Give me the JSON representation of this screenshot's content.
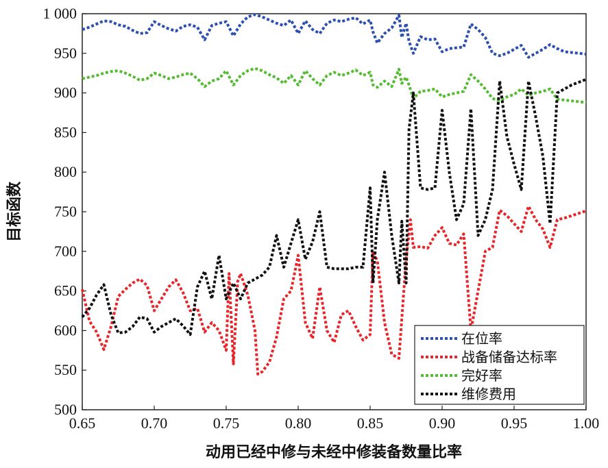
{
  "chart_data": {
    "type": "line",
    "title": "",
    "xlabel": "动用已经中修与未经中修装备数量比率",
    "ylabel": "目标函数",
    "xlim": [
      0.65,
      1.0
    ],
    "ylim": [
      500,
      1000
    ],
    "x_ticks": [
      "0.65",
      "0.70",
      "0.75",
      "0.80",
      "0.85",
      "0.90",
      "0.95",
      "1.00"
    ],
    "y_ticks": [
      "500",
      "550",
      "600",
      "650",
      "700",
      "750",
      "800",
      "850",
      "900",
      "950",
      "1 000"
    ],
    "grid": false,
    "legend_position": "bottom-right",
    "line_style": "dotted",
    "series": [
      {
        "name": "在位率",
        "color": "#2c4fb0",
        "points": [
          [
            0.65,
            980
          ],
          [
            0.655,
            983
          ],
          [
            0.66,
            987
          ],
          [
            0.665,
            991
          ],
          [
            0.67,
            990
          ],
          [
            0.675,
            986
          ],
          [
            0.68,
            984
          ],
          [
            0.685,
            979
          ],
          [
            0.69,
            975
          ],
          [
            0.695,
            976
          ],
          [
            0.7,
            990
          ],
          [
            0.705,
            985
          ],
          [
            0.71,
            981
          ],
          [
            0.715,
            978
          ],
          [
            0.72,
            984
          ],
          [
            0.725,
            986
          ],
          [
            0.73,
            983
          ],
          [
            0.735,
            967
          ],
          [
            0.74,
            985
          ],
          [
            0.745,
            988
          ],
          [
            0.75,
            990
          ],
          [
            0.755,
            972
          ],
          [
            0.76,
            987
          ],
          [
            0.765,
            996
          ],
          [
            0.77,
            999
          ],
          [
            0.775,
            996
          ],
          [
            0.78,
            992
          ],
          [
            0.785,
            988
          ],
          [
            0.79,
            985
          ],
          [
            0.795,
            992
          ],
          [
            0.8,
            975
          ],
          [
            0.805,
            991
          ],
          [
            0.81,
            980
          ],
          [
            0.815,
            975
          ],
          [
            0.82,
            988
          ],
          [
            0.825,
            992
          ],
          [
            0.83,
            990
          ],
          [
            0.835,
            993
          ],
          [
            0.84,
            995
          ],
          [
            0.845,
            987
          ],
          [
            0.85,
            992
          ],
          [
            0.852,
            977
          ],
          [
            0.855,
            963
          ],
          [
            0.86,
            975
          ],
          [
            0.865,
            982
          ],
          [
            0.87,
            998
          ],
          [
            0.872,
            970
          ],
          [
            0.875,
            988
          ],
          [
            0.877,
            965
          ],
          [
            0.88,
            950
          ],
          [
            0.885,
            971
          ],
          [
            0.89,
            967
          ],
          [
            0.895,
            968
          ],
          [
            0.9,
            952
          ],
          [
            0.905,
            956
          ],
          [
            0.91,
            957
          ],
          [
            0.915,
            958
          ],
          [
            0.92,
            987
          ],
          [
            0.925,
            980
          ],
          [
            0.93,
            970
          ],
          [
            0.935,
            950
          ],
          [
            0.94,
            947
          ],
          [
            0.945,
            950
          ],
          [
            0.95,
            955
          ],
          [
            0.955,
            960
          ],
          [
            0.96,
            945
          ],
          [
            0.965,
            950
          ],
          [
            0.97,
            955
          ],
          [
            0.975,
            961
          ],
          [
            0.98,
            956
          ],
          [
            0.985,
            952
          ],
          [
            0.99,
            951
          ],
          [
            1.0,
            949
          ]
        ]
      },
      {
        "name": "战备储备达标率",
        "color": "#e8252a",
        "points": [
          [
            0.65,
            652
          ],
          [
            0.655,
            612
          ],
          [
            0.66,
            598
          ],
          [
            0.665,
            576
          ],
          [
            0.67,
            605
          ],
          [
            0.675,
            643
          ],
          [
            0.68,
            652
          ],
          [
            0.685,
            660
          ],
          [
            0.69,
            665
          ],
          [
            0.695,
            657
          ],
          [
            0.7,
            625
          ],
          [
            0.705,
            640
          ],
          [
            0.71,
            655
          ],
          [
            0.715,
            664
          ],
          [
            0.72,
            648
          ],
          [
            0.725,
            625
          ],
          [
            0.73,
            628
          ],
          [
            0.735,
            598
          ],
          [
            0.74,
            610
          ],
          [
            0.745,
            600
          ],
          [
            0.75,
            575
          ],
          [
            0.752,
            672
          ],
          [
            0.755,
            558
          ],
          [
            0.758,
            662
          ],
          [
            0.76,
            672
          ],
          [
            0.765,
            645
          ],
          [
            0.77,
            600
          ],
          [
            0.772,
            545
          ],
          [
            0.775,
            548
          ],
          [
            0.78,
            560
          ],
          [
            0.785,
            592
          ],
          [
            0.79,
            640
          ],
          [
            0.795,
            650
          ],
          [
            0.8,
            695
          ],
          [
            0.805,
            610
          ],
          [
            0.81,
            590
          ],
          [
            0.815,
            655
          ],
          [
            0.82,
            600
          ],
          [
            0.825,
            585
          ],
          [
            0.83,
            620
          ],
          [
            0.835,
            625
          ],
          [
            0.84,
            605
          ],
          [
            0.845,
            588
          ],
          [
            0.85,
            595
          ],
          [
            0.852,
            700
          ],
          [
            0.855,
            688
          ],
          [
            0.86,
            610
          ],
          [
            0.865,
            570
          ],
          [
            0.87,
            565
          ],
          [
            0.875,
            690
          ],
          [
            0.878,
            740
          ],
          [
            0.88,
            705
          ],
          [
            0.885,
            706
          ],
          [
            0.89,
            704
          ],
          [
            0.895,
            720
          ],
          [
            0.9,
            730
          ],
          [
            0.905,
            710
          ],
          [
            0.91,
            708
          ],
          [
            0.915,
            722
          ],
          [
            0.92,
            600
          ],
          [
            0.925,
            650
          ],
          [
            0.93,
            700
          ],
          [
            0.935,
            705
          ],
          [
            0.94,
            752
          ],
          [
            0.945,
            745
          ],
          [
            0.95,
            735
          ],
          [
            0.955,
            725
          ],
          [
            0.96,
            757
          ],
          [
            0.965,
            740
          ],
          [
            0.97,
            728
          ],
          [
            0.975,
            705
          ],
          [
            0.98,
            740
          ],
          [
            0.985,
            742
          ],
          [
            0.99,
            745
          ],
          [
            1.0,
            751
          ]
        ]
      },
      {
        "name": "完好率",
        "color": "#55bb33",
        "points": [
          [
            0.65,
            918
          ],
          [
            0.655,
            920
          ],
          [
            0.66,
            922
          ],
          [
            0.665,
            925
          ],
          [
            0.67,
            927
          ],
          [
            0.675,
            928
          ],
          [
            0.68,
            925
          ],
          [
            0.685,
            921
          ],
          [
            0.69,
            916
          ],
          [
            0.695,
            918
          ],
          [
            0.7,
            925
          ],
          [
            0.705,
            922
          ],
          [
            0.71,
            918
          ],
          [
            0.715,
            920
          ],
          [
            0.72,
            923
          ],
          [
            0.725,
            925
          ],
          [
            0.73,
            918
          ],
          [
            0.735,
            908
          ],
          [
            0.74,
            915
          ],
          [
            0.745,
            918
          ],
          [
            0.75,
            928
          ],
          [
            0.755,
            910
          ],
          [
            0.76,
            922
          ],
          [
            0.765,
            928
          ],
          [
            0.77,
            931
          ],
          [
            0.775,
            928
          ],
          [
            0.78,
            923
          ],
          [
            0.785,
            919
          ],
          [
            0.79,
            912
          ],
          [
            0.795,
            922
          ],
          [
            0.8,
            910
          ],
          [
            0.805,
            928
          ],
          [
            0.81,
            918
          ],
          [
            0.815,
            910
          ],
          [
            0.82,
            922
          ],
          [
            0.825,
            926
          ],
          [
            0.83,
            922
          ],
          [
            0.835,
            925
          ],
          [
            0.84,
            929
          ],
          [
            0.845,
            922
          ],
          [
            0.85,
            926
          ],
          [
            0.852,
            910
          ],
          [
            0.855,
            907
          ],
          [
            0.86,
            915
          ],
          [
            0.865,
            908
          ],
          [
            0.87,
            930
          ],
          [
            0.872,
            912
          ],
          [
            0.875,
            920
          ],
          [
            0.877,
            910
          ],
          [
            0.88,
            893
          ],
          [
            0.885,
            902
          ],
          [
            0.89,
            903
          ],
          [
            0.895,
            905
          ],
          [
            0.9,
            895
          ],
          [
            0.905,
            898
          ],
          [
            0.91,
            900
          ],
          [
            0.915,
            902
          ],
          [
            0.92,
            923
          ],
          [
            0.925,
            915
          ],
          [
            0.93,
            905
          ],
          [
            0.935,
            893
          ],
          [
            0.94,
            890
          ],
          [
            0.945,
            895
          ],
          [
            0.95,
            898
          ],
          [
            0.955,
            905
          ],
          [
            0.96,
            897
          ],
          [
            0.965,
            900
          ],
          [
            0.97,
            902
          ],
          [
            0.975,
            905
          ],
          [
            0.98,
            892
          ],
          [
            0.985,
            891
          ],
          [
            0.99,
            890
          ],
          [
            1.0,
            888
          ]
        ]
      },
      {
        "name": "维修费用",
        "color": "#111111",
        "points": [
          [
            0.65,
            617
          ],
          [
            0.655,
            628
          ],
          [
            0.66,
            645
          ],
          [
            0.665,
            658
          ],
          [
            0.67,
            620
          ],
          [
            0.675,
            597
          ],
          [
            0.68,
            598
          ],
          [
            0.685,
            605
          ],
          [
            0.69,
            617
          ],
          [
            0.695,
            615
          ],
          [
            0.7,
            598
          ],
          [
            0.705,
            605
          ],
          [
            0.71,
            610
          ],
          [
            0.715,
            615
          ],
          [
            0.72,
            606
          ],
          [
            0.725,
            595
          ],
          [
            0.73,
            655
          ],
          [
            0.735,
            675
          ],
          [
            0.74,
            640
          ],
          [
            0.745,
            695
          ],
          [
            0.75,
            640
          ],
          [
            0.755,
            660
          ],
          [
            0.76,
            640
          ],
          [
            0.765,
            660
          ],
          [
            0.77,
            665
          ],
          [
            0.775,
            670
          ],
          [
            0.78,
            680
          ],
          [
            0.785,
            720
          ],
          [
            0.79,
            680
          ],
          [
            0.795,
            710
          ],
          [
            0.8,
            740
          ],
          [
            0.805,
            690
          ],
          [
            0.81,
            712
          ],
          [
            0.815,
            750
          ],
          [
            0.82,
            680
          ],
          [
            0.825,
            678
          ],
          [
            0.83,
            678
          ],
          [
            0.835,
            678
          ],
          [
            0.84,
            680
          ],
          [
            0.845,
            680
          ],
          [
            0.85,
            780
          ],
          [
            0.852,
            660
          ],
          [
            0.855,
            740
          ],
          [
            0.86,
            800
          ],
          [
            0.865,
            720
          ],
          [
            0.87,
            660
          ],
          [
            0.872,
            738
          ],
          [
            0.875,
            660
          ],
          [
            0.877,
            854
          ],
          [
            0.88,
            900
          ],
          [
            0.885,
            780
          ],
          [
            0.89,
            778
          ],
          [
            0.895,
            780
          ],
          [
            0.9,
            878
          ],
          [
            0.905,
            800
          ],
          [
            0.91,
            740
          ],
          [
            0.915,
            760
          ],
          [
            0.92,
            880
          ],
          [
            0.925,
            720
          ],
          [
            0.93,
            740
          ],
          [
            0.935,
            778
          ],
          [
            0.94,
            915
          ],
          [
            0.945,
            845
          ],
          [
            0.95,
            810
          ],
          [
            0.955,
            778
          ],
          [
            0.96,
            915
          ],
          [
            0.965,
            870
          ],
          [
            0.97,
            820
          ],
          [
            0.975,
            735
          ],
          [
            0.98,
            900
          ],
          [
            0.985,
            905
          ],
          [
            0.99,
            910
          ],
          [
            1.0,
            917
          ]
        ]
      }
    ]
  }
}
